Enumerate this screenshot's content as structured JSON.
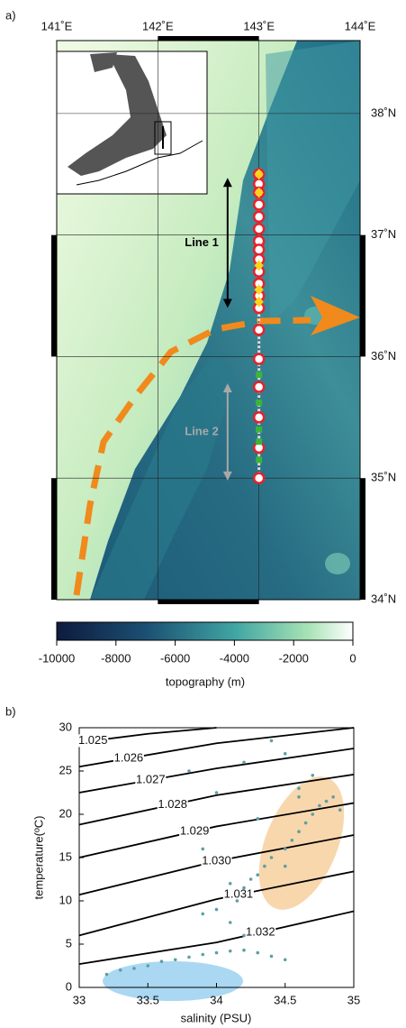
{
  "chart_data": [
    {
      "type": "map",
      "panel": "a)",
      "xlim": [
        141,
        144
      ],
      "ylim": [
        34,
        38.6
      ],
      "xticks": [
        {
          "value": 141,
          "label": "141˚E"
        },
        {
          "value": 142,
          "label": "142˚E"
        },
        {
          "value": 143,
          "label": "143˚E"
        },
        {
          "value": 144,
          "label": "144˚E"
        }
      ],
      "yticks": [
        {
          "value": 34,
          "label": "34˚N"
        },
        {
          "value": 35,
          "label": "35˚N"
        },
        {
          "value": 36,
          "label": "36˚N"
        },
        {
          "value": 37,
          "label": "37˚N"
        },
        {
          "value": 38,
          "label": "38˚N"
        }
      ],
      "grid": true,
      "series": [
        {
          "color": "#e8202a",
          "marker": "circle",
          "x": [
            143,
            143,
            143,
            143,
            143,
            143,
            143,
            143,
            143,
            143,
            143,
            143,
            143,
            143,
            143,
            143,
            143,
            143,
            143
          ],
          "values": [
            37.5,
            37.42,
            37.35,
            37.25,
            37.15,
            37.05,
            36.95,
            36.88,
            36.8,
            36.7,
            36.6,
            36.5,
            36.4,
            36.22,
            35.98,
            35.75,
            35.5,
            35.25,
            35.0
          ]
        },
        {
          "color": "#ffd21a",
          "marker": "diamond",
          "x": [
            143,
            143,
            143,
            143,
            143
          ],
          "values": [
            37.5,
            37.35,
            36.75,
            36.55,
            36.45
          ]
        },
        {
          "color": "#3cb43c",
          "marker": "square",
          "x": [
            143,
            143,
            143,
            143,
            143
          ],
          "values": [
            35.85,
            35.62,
            35.4,
            35.3,
            35.15
          ]
        }
      ],
      "annotations": [
        {
          "text": "Line 1",
          "lon": 142.69,
          "lat": [
            37.47,
            36.4
          ],
          "color": "#000000"
        },
        {
          "text": "Line 2",
          "lon": 142.69,
          "lat": [
            35.78,
            34.98
          ],
          "color": "#a8a8a8"
        }
      ]
    },
    {
      "type": "colorbar",
      "xlim": [
        -10000,
        0
      ],
      "xticks": [
        -10000,
        -8000,
        -6000,
        -4000,
        -2000,
        0
      ],
      "xlabel": "topography (m)"
    },
    {
      "type": "scatter",
      "panel": "b)",
      "xlabel": "salinity (PSU)",
      "ylabel": "temperature(ºC)",
      "xlim": [
        33,
        35
      ],
      "ylim": [
        0,
        30
      ],
      "xticks": [
        33,
        33.5,
        34,
        34.5,
        35
      ],
      "yticks": [
        0,
        5,
        10,
        15,
        20,
        25,
        30
      ],
      "series": [
        {
          "color": "#5e9fa3",
          "x": [
            33.2,
            33.3,
            33.4,
            33.5,
            33.6,
            33.7,
            33.8,
            33.9,
            34.0,
            34.1,
            34.2,
            34.3,
            34.4,
            34.5,
            33.9,
            34.0,
            34.1,
            34.2,
            34.15,
            34.2,
            34.25,
            34.3,
            34.35,
            34.4,
            34.5,
            34.55,
            34.6,
            34.65,
            34.7,
            34.75,
            34.8,
            34.85,
            34.9,
            34.6,
            34.7,
            34.5,
            34.4,
            34.2,
            34.0,
            33.8,
            34.3,
            34.5,
            33.9,
            34.1,
            34.6
          ],
          "values": [
            1.5,
            2.0,
            2.2,
            2.5,
            3.0,
            3.2,
            3.5,
            3.8,
            4.0,
            4.2,
            4.3,
            4.0,
            3.6,
            3.2,
            8.5,
            9.0,
            7.5,
            6.0,
            10,
            11.5,
            12.5,
            13,
            14,
            15,
            16,
            17,
            18,
            19,
            20,
            21,
            21.5,
            22,
            20.5,
            23,
            24.5,
            27,
            28.5,
            26,
            22.5,
            25,
            19.5,
            14,
            16,
            12,
            22
          ]
        }
      ],
      "contours": [
        {
          "label": "1.025",
          "x": [
            33,
            33.5,
            34.0
          ],
          "y": [
            28.3,
            29.3,
            30
          ]
        },
        {
          "label": "1.026",
          "x": [
            33,
            34,
            35
          ],
          "y": [
            25.5,
            28.2,
            30
          ]
        },
        {
          "label": "1.027",
          "x": [
            33,
            34,
            35
          ],
          "y": [
            22.5,
            25.3,
            27.6
          ]
        },
        {
          "label": "1.028",
          "x": [
            33,
            34,
            35
          ],
          "y": [
            18.8,
            22.2,
            24.6
          ]
        },
        {
          "label": "1.029",
          "x": [
            33,
            34,
            35
          ],
          "y": [
            15,
            18.6,
            21.3
          ]
        },
        {
          "label": "1.030",
          "x": [
            33,
            34,
            35
          ],
          "y": [
            10.7,
            14.6,
            17.6
          ]
        },
        {
          "label": "1.031",
          "x": [
            33,
            34,
            35
          ],
          "y": [
            6,
            10.2,
            13.4
          ]
        },
        {
          "label": "1.032",
          "x": [
            33,
            34,
            35
          ],
          "y": [
            2.7,
            5.2,
            8.8
          ]
        }
      ]
    }
  ]
}
